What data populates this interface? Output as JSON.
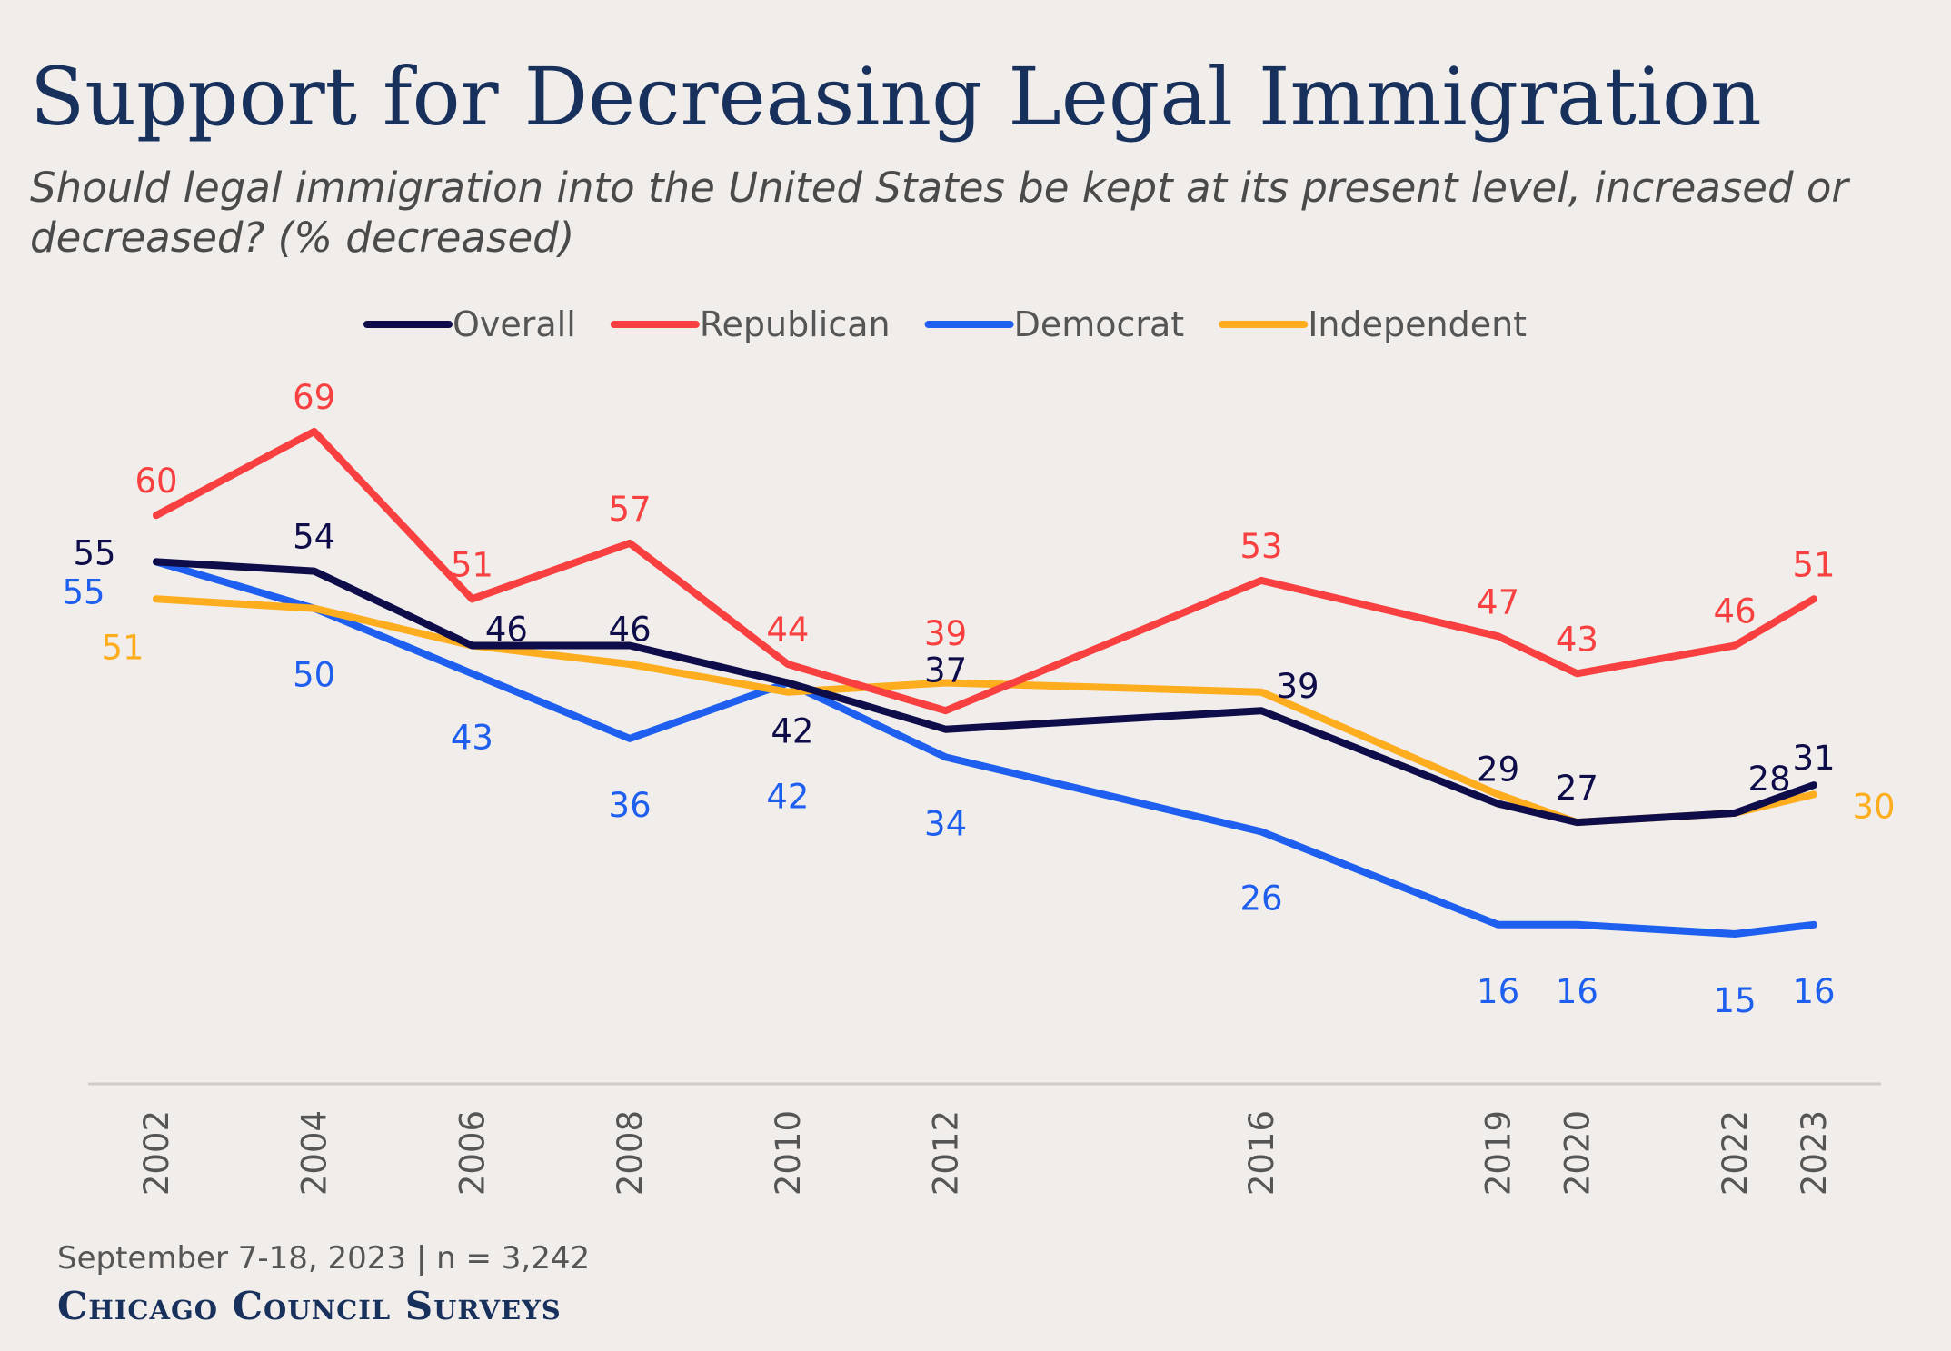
{
  "chart_data": {
    "type": "line",
    "title": "Support for Decreasing Legal Immigration",
    "subtitle_lines": [
      "Should legal immigration into the United States be kept at its present level, increased or",
      "decreased? (% decreased)"
    ],
    "x": [
      "2002",
      "2004",
      "2006",
      "2008",
      "2010",
      "2012",
      "2016",
      "2019",
      "2020",
      "2022",
      "2023"
    ],
    "x_numeric": [
      2002,
      2004,
      2006,
      2008,
      2010,
      2012,
      2016,
      2019,
      2020,
      2022,
      2023
    ],
    "series": [
      {
        "name": "Overall",
        "color": "#0f0c4a",
        "values": [
          55,
          54,
          46,
          46,
          42,
          37,
          39,
          29,
          27,
          28,
          31
        ]
      },
      {
        "name": "Republican",
        "color": "#f94040",
        "values": [
          60,
          69,
          51,
          57,
          44,
          39,
          53,
          47,
          43,
          46,
          51
        ]
      },
      {
        "name": "Democrat",
        "color": "#1e5fef",
        "values": [
          55,
          50,
          43,
          36,
          42,
          34,
          26,
          16,
          16,
          15,
          16
        ]
      },
      {
        "name": "Independent",
        "color": "#fdad1d",
        "values": [
          51,
          50,
          46,
          44,
          41,
          42,
          41,
          30,
          27,
          28,
          30
        ]
      }
    ],
    "data_labels": {
      "Overall": [
        "55",
        "54",
        "46",
        "46",
        "42",
        "37",
        "39",
        "29",
        "27",
        "28",
        "31"
      ],
      "Republican": [
        "60",
        "69",
        "51",
        "57",
        "44",
        "39",
        "53",
        "47",
        "43",
        "46",
        "51"
      ],
      "Democrat": [
        "55",
        "50",
        "43",
        "36",
        "42",
        "34",
        "26",
        "16",
        "16",
        "15",
        "16"
      ],
      "Independent": [
        "51",
        "",
        "",
        "",
        "",
        "",
        "",
        "",
        "",
        "",
        "30"
      ]
    },
    "xlabel": "",
    "ylabel": "",
    "ylim": [
      0,
      75
    ],
    "grid": false,
    "legend_position": "top-center"
  },
  "footer": {
    "note": "September 7-18, 2023 | n = 3,242",
    "brand": "Chicago Council Surveys"
  }
}
